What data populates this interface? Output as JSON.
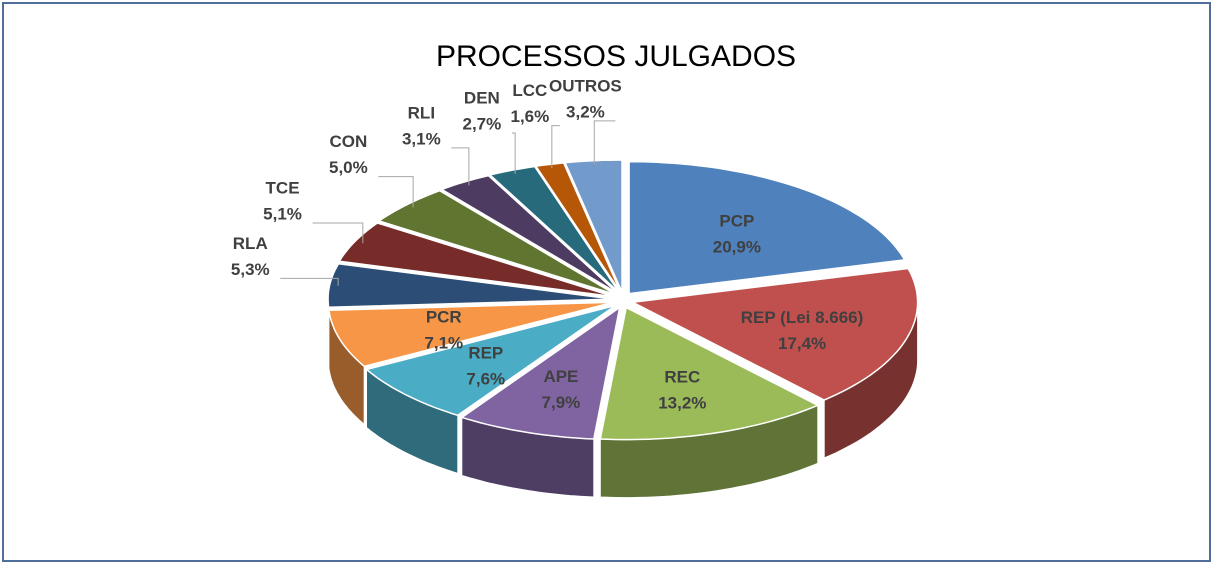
{
  "chart_data": {
    "type": "pie",
    "title": "PROCESSOS JULGADOS",
    "categories": [
      "PCP",
      "REP (Lei 8.666)",
      "REC",
      "APE",
      "REP",
      "PCR",
      "RLA",
      "TCE",
      "CON",
      "RLI",
      "DEN",
      "LCC",
      "OUTROS"
    ],
    "values": [
      20.9,
      17.4,
      13.2,
      7.9,
      7.6,
      7.1,
      5.3,
      5.1,
      5.0,
      3.1,
      2.7,
      1.6,
      3.2
    ],
    "value_labels": [
      "20,9%",
      "17,4%",
      "13,2%",
      "7,9%",
      "7,6%",
      "7,1%",
      "5,3%",
      "5,1%",
      "5,0%",
      "3,1%",
      "2,7%",
      "1,6%",
      "3,2%"
    ],
    "colors": [
      "#4f81bd",
      "#c0504d",
      "#9bbb59",
      "#8064a2",
      "#4bacc6",
      "#f79646",
      "#2c4d75",
      "#772c2a",
      "#5f7530",
      "#4d3b62",
      "#276a7c",
      "#b65708",
      "#729aca"
    ]
  }
}
